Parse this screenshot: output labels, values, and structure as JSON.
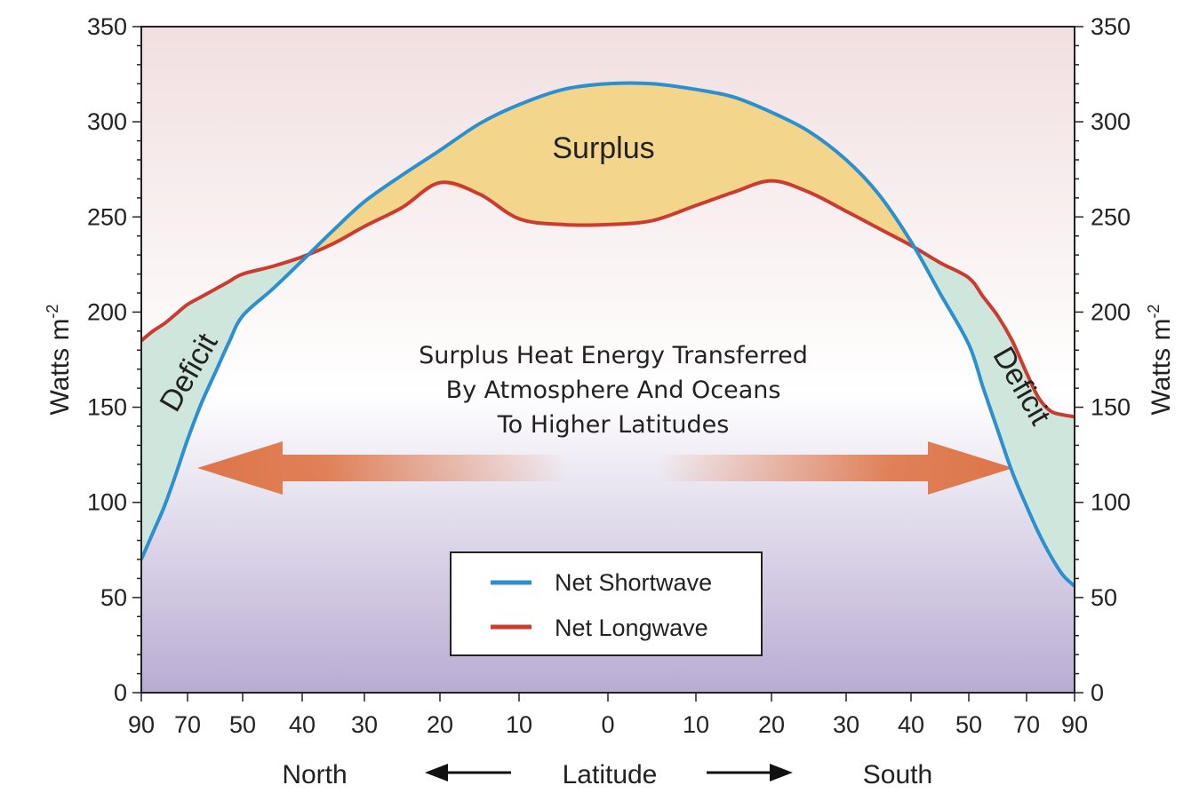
{
  "chart_data": {
    "type": "line",
    "x_tick_labels": [
      "90",
      "70",
      "50",
      "40",
      "30",
      "20",
      "10",
      "0",
      "10",
      "20",
      "30",
      "40",
      "50",
      "70",
      "90"
    ],
    "x_tick_values": [
      -90,
      -70,
      -50,
      -40,
      -30,
      -20,
      -10,
      0,
      10,
      20,
      30,
      40,
      50,
      70,
      90
    ],
    "xlim": [
      -90,
      90
    ],
    "ylim": [
      0,
      350
    ],
    "y_ticks": [
      0,
      50,
      100,
      150,
      200,
      250,
      300,
      350
    ],
    "ylabel_left": "Watts m",
    "ylabel_right": "Watts m",
    "ylabel_sup": "-2",
    "xlabel": "Latitude",
    "xlabel_left": "North",
    "xlabel_right": "South",
    "region_labels": {
      "surplus": "Surplus",
      "deficit_left": "Deficit",
      "deficit_right": "Deficit"
    },
    "annotation": [
      "Surplus Heat Energy Transferred",
      "By Atmosphere And Oceans",
      "To Higher Latitudes"
    ],
    "legend_position": "bottom-center",
    "series": [
      {
        "name": "Net Shortwave",
        "color": "#2b8fd0",
        "x": [
          -90,
          -85,
          -80,
          -75,
          -70,
          -65,
          -60,
          -55,
          -50,
          -45,
          -40,
          -35,
          -30,
          -25,
          -20,
          -15,
          -10,
          -5,
          0,
          5,
          10,
          15,
          20,
          25,
          30,
          35,
          40,
          45,
          50,
          55,
          60,
          65,
          70,
          75,
          80,
          85,
          90
        ],
        "values": [
          70,
          84,
          98,
          115,
          133,
          152,
          168,
          184,
          198,
          212,
          227,
          243,
          258,
          272,
          285,
          299,
          309,
          317,
          320,
          320,
          317,
          313,
          305,
          295,
          280,
          262,
          237,
          210,
          183,
          160,
          138,
          116,
          98,
          84,
          72,
          62,
          56
        ]
      },
      {
        "name": "Net Longwave",
        "color": "#cc3b30",
        "x": [
          -90,
          -85,
          -80,
          -75,
          -70,
          -65,
          -60,
          -55,
          -50,
          -45,
          -40,
          -35,
          -30,
          -25,
          -20,
          -15,
          -10,
          -5,
          0,
          5,
          10,
          15,
          20,
          25,
          30,
          35,
          40,
          45,
          50,
          55,
          60,
          65,
          70,
          75,
          80,
          85,
          90
        ],
        "values": [
          185,
          190,
          194,
          199,
          204,
          208,
          212,
          216,
          220,
          224,
          229,
          236,
          245,
          255,
          268,
          262,
          249,
          246,
          246,
          248,
          256,
          263,
          269,
          263,
          253,
          244,
          235,
          226,
          218,
          208,
          198,
          185,
          168,
          155,
          148,
          146,
          145
        ]
      }
    ],
    "colors": {
      "surplus_fill": "#f3d68c",
      "deficit_fill": "#cfe6dc",
      "arrow": "#de7548",
      "bg_top": "#f1dfe0",
      "bg_mid": "#ffffff",
      "bg_bottom": "#b9acd2"
    }
  }
}
